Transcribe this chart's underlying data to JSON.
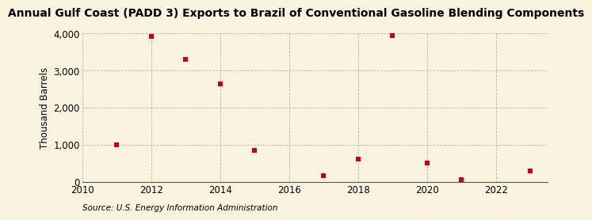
{
  "title": "Annual Gulf Coast (PADD 3) Exports to Brazil of Conventional Gasoline Blending Components",
  "ylabel": "Thousand Barrels",
  "source": "Source: U.S. Energy Information Administration",
  "years": [
    2011,
    2012,
    2013,
    2014,
    2015,
    2017,
    2018,
    2019,
    2020,
    2021,
    2023
  ],
  "values": [
    1000,
    3930,
    3300,
    2650,
    850,
    150,
    620,
    3940,
    510,
    60,
    290
  ],
  "marker_color": "#cc0000",
  "marker_size": 5,
  "xlim": [
    2010,
    2023.5
  ],
  "ylim": [
    0,
    4000
  ],
  "yticks": [
    0,
    1000,
    2000,
    3000,
    4000
  ],
  "xticks": [
    2010,
    2012,
    2014,
    2016,
    2018,
    2020,
    2022
  ],
  "background_color": "#faf3e0",
  "grid_color": "#999999",
  "title_fontsize": 10,
  "axis_fontsize": 8.5,
  "source_fontsize": 7.5
}
